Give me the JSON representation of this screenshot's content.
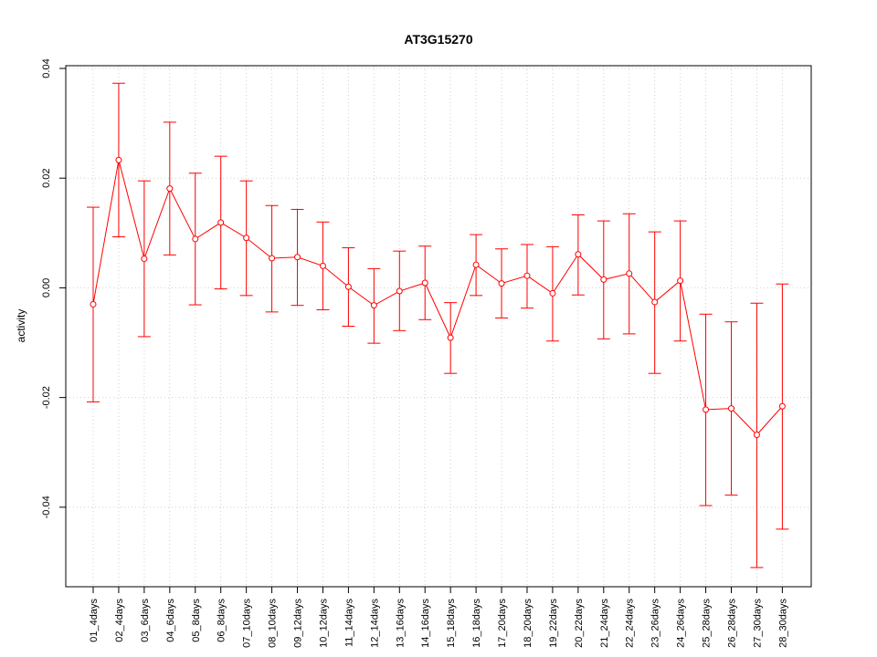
{
  "chart_data": {
    "type": "line",
    "title": "AT3G15270",
    "xlabel": "",
    "ylabel": "activity",
    "ylim": [
      -0.0545,
      0.0405
    ],
    "yticks": [
      -0.04,
      -0.02,
      0.0,
      0.02,
      0.04
    ],
    "ytick_labels": [
      "-0.04",
      "-0.02",
      "0.00",
      "0.02",
      "0.04"
    ],
    "grid": true,
    "categories": [
      "01_4days",
      "02_4days",
      "03_6days",
      "04_6days",
      "05_8days",
      "06_8days",
      "07_10days",
      "08_10days",
      "09_12days",
      "10_12days",
      "11_14days",
      "12_14days",
      "13_16days",
      "14_16days",
      "15_18days",
      "16_18days",
      "17_20days",
      "18_20days",
      "19_22days",
      "20_22days",
      "21_24days",
      "22_24days",
      "23_26days",
      "24_26days",
      "25_28days",
      "26_28days",
      "27_30days",
      "28_30days"
    ],
    "series": [
      {
        "color": "#ff0000",
        "values": [
          -0.003,
          0.0233,
          0.0053,
          0.0181,
          0.0089,
          0.0119,
          0.0091,
          0.0054,
          0.0056,
          0.004,
          0.0002,
          -0.0032,
          -0.0006,
          0.0009,
          -0.0091,
          0.0042,
          0.0008,
          0.0022,
          -0.001,
          0.0061,
          0.0015,
          0.0026,
          -0.0026,
          0.0013,
          -0.0222,
          -0.022,
          -0.0268,
          -0.0216
        ],
        "upper": [
          0.0147,
          0.0373,
          0.0195,
          0.0302,
          0.0209,
          0.024,
          0.0195,
          0.015,
          0.0143,
          0.012,
          0.0073,
          0.0035,
          0.0067,
          0.0076,
          -0.0027,
          0.0097,
          0.0071,
          0.0079,
          0.0075,
          0.0133,
          0.0122,
          0.0135,
          0.0102,
          0.0122,
          -0.0048,
          -0.0062,
          -0.0028,
          0.0007
        ],
        "lower": [
          -0.0208,
          0.0093,
          -0.0089,
          0.006,
          -0.0031,
          -0.0002,
          -0.0014,
          -0.0044,
          -0.0032,
          -0.004,
          -0.007,
          -0.0101,
          -0.0078,
          -0.0058,
          -0.0156,
          -0.0014,
          -0.0055,
          -0.0037,
          -0.0097,
          -0.0013,
          -0.0093,
          -0.0084,
          -0.0156,
          -0.0097,
          -0.0397,
          -0.0378,
          -0.051,
          -0.044
        ]
      }
    ]
  }
}
